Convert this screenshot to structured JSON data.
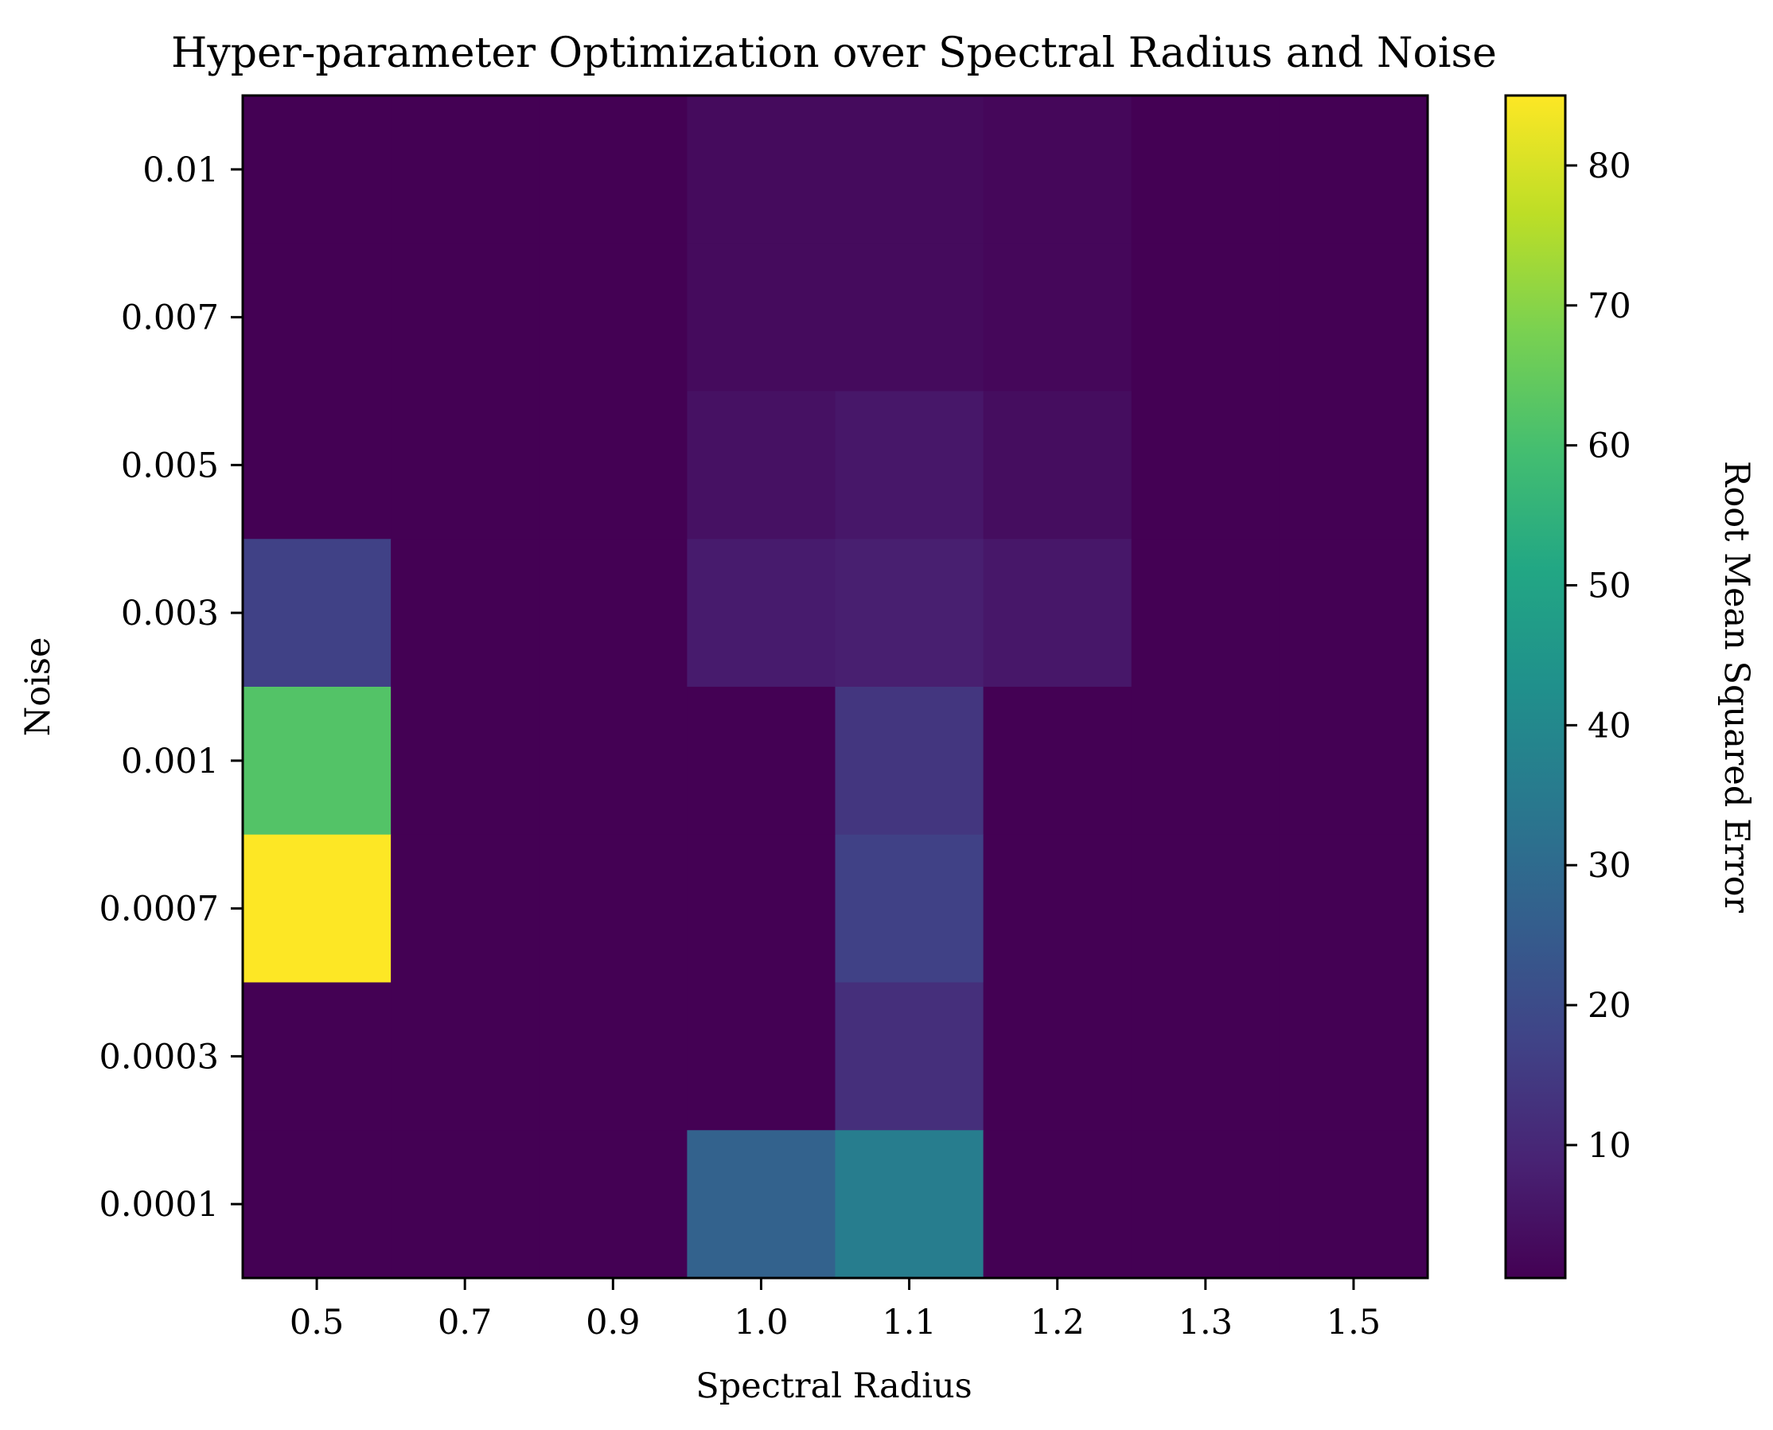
{
  "chart_data": {
    "type": "heatmap",
    "title": "Hyper-parameter Optimization over Spectral Radius and Noise",
    "xlabel": "Spectral Radius",
    "ylabel": "Noise",
    "x_categories": [
      "0.5",
      "0.7",
      "0.9",
      "1.0",
      "1.1",
      "1.2",
      "1.3",
      "1.5"
    ],
    "y_categories": [
      "0.01",
      "0.007",
      "0.005",
      "0.003",
      "0.001",
      "0.0007",
      "0.0003",
      "0.0001"
    ],
    "values": [
      [
        0.5,
        0.5,
        0.5,
        3.0,
        3.0,
        2.0,
        0.5,
        0.5
      ],
      [
        0.5,
        0.5,
        0.5,
        3.0,
        3.0,
        2.0,
        0.5,
        0.5
      ],
      [
        0.5,
        0.5,
        0.5,
        4.5,
        6.0,
        3.5,
        0.5,
        0.5
      ],
      [
        17.0,
        0.5,
        0.5,
        7.0,
        8.0,
        6.0,
        0.5,
        0.5
      ],
      [
        62.0,
        0.5,
        0.5,
        0.5,
        14.0,
        0.5,
        0.5,
        0.5
      ],
      [
        85.0,
        0.5,
        0.5,
        0.5,
        17.0,
        0.5,
        0.5,
        0.5
      ],
      [
        0.5,
        0.5,
        0.5,
        0.5,
        12.0,
        0.5,
        0.5,
        0.5
      ],
      [
        0.5,
        0.5,
        0.5,
        27.0,
        36.0,
        0.5,
        0.5,
        0.5
      ]
    ],
    "colormap": "viridis",
    "color_range": [
      0.5,
      85
    ],
    "colorbar": {
      "label": "Root Mean Squared Error",
      "ticks": [
        "10",
        "20",
        "30",
        "40",
        "50",
        "60",
        "70",
        "80"
      ]
    }
  }
}
